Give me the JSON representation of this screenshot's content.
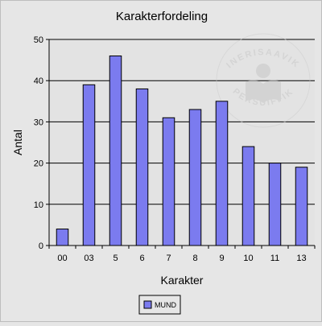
{
  "chart_data": {
    "type": "bar",
    "title": "Karakterfordeling",
    "xlabel": "Karakter",
    "ylabel": "Antal",
    "categories": [
      "00",
      "03",
      "5",
      "6",
      "7",
      "8",
      "9",
      "10",
      "11",
      "13"
    ],
    "series": [
      {
        "name": "MUND",
        "values": [
          4,
          39,
          46,
          38,
          31,
          33,
          35,
          24,
          20,
          19
        ],
        "color": "#7b7bef"
      }
    ],
    "ylim": [
      0,
      50
    ],
    "yticks": [
      0,
      10,
      20,
      30,
      40,
      50
    ],
    "grid": true,
    "legend_position": "bottom-center",
    "plot_background": "#e3e3e3",
    "page_background": "#e6e6e6",
    "bar_stroke": "#000000"
  },
  "watermark": {
    "text_top": "INERISAAVIK",
    "text_bottom": "PERSUIFFIK",
    "icon": "book-reader-seal-icon"
  }
}
